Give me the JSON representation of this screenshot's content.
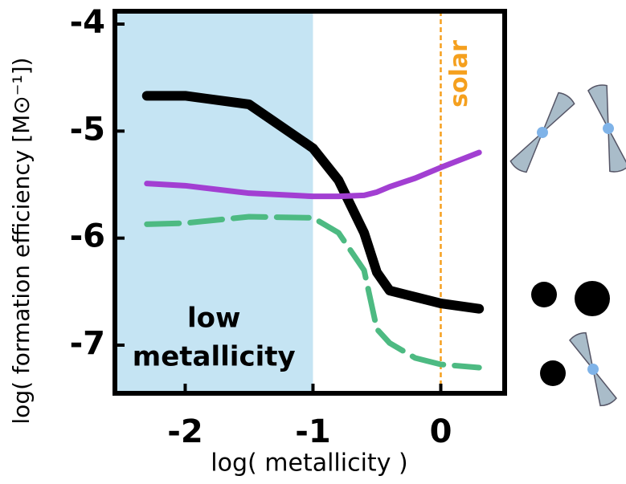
{
  "chart_data": {
    "type": "line",
    "xlabel": "log( metallicity )",
    "ylabel": "log( formation efficiency [M⊙⁻¹])",
    "xlim": [
      -2.55,
      0.5
    ],
    "ylim": [
      -7.45,
      -3.88
    ],
    "xticks": [
      -2,
      -1,
      0
    ],
    "yticks": [
      -7,
      -6,
      -5,
      -4
    ],
    "x": [
      -2.3,
      -2,
      -1.5,
      -1,
      -0.8,
      -0.6,
      -0.5,
      -0.4,
      -0.2,
      0,
      0.3
    ],
    "series": [
      {
        "color": "#000000",
        "width": 12,
        "dashed": false,
        "values": [
          -4.67,
          -4.67,
          -4.75,
          -5.16,
          -5.46,
          -5.95,
          -6.32,
          -6.49,
          -6.55,
          -6.61,
          -6.66
        ]
      },
      {
        "color": "#a23fd2",
        "width": 7,
        "dashed": false,
        "values": [
          -5.49,
          -5.51,
          -5.58,
          -5.61,
          -5.61,
          -5.6,
          -5.57,
          -5.52,
          -5.44,
          -5.34,
          -5.2
        ]
      },
      {
        "color": "#4dba82",
        "width": 7,
        "dashed": true,
        "values": [
          -5.87,
          -5.86,
          -5.8,
          -5.81,
          -5.95,
          -6.3,
          -6.85,
          -6.98,
          -7.12,
          -7.18,
          -7.21
        ]
      }
    ],
    "shaded_region": {
      "xmax": -1,
      "color": "#c5e4f3",
      "label_lines": [
        "low",
        "metallicity"
      ]
    },
    "reference_line": {
      "x": 0,
      "color": "#f5a01e",
      "label": "solar"
    }
  }
}
